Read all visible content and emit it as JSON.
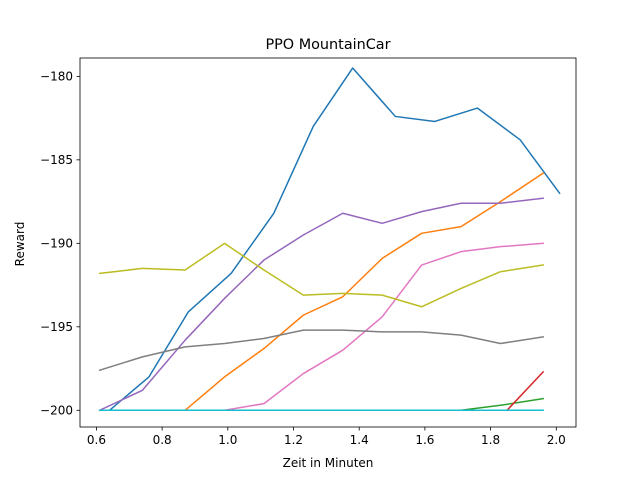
{
  "chart_data": {
    "type": "line",
    "title": "PPO MountainCar",
    "xlabel": "Zeit in Minuten",
    "ylabel": "Reward",
    "xlim": [
      0.55,
      2.06
    ],
    "ylim": [
      -201.0,
      -178.9
    ],
    "x_ticks": [
      0.6,
      0.8,
      1.0,
      1.2,
      1.4,
      1.6,
      1.8,
      2.0
    ],
    "x_tick_labels": [
      "0.6",
      "0.8",
      "1.0",
      "1.2",
      "1.4",
      "1.6",
      "1.8",
      "2.0"
    ],
    "y_ticks": [
      -200,
      -195,
      -190,
      -185,
      -180
    ],
    "y_tick_labels": [
      "−200",
      "−195",
      "−190",
      "−185",
      "−180"
    ],
    "grid": false,
    "series": [
      {
        "color": "#1f77b4",
        "points": [
          [
            0.61,
            -200.0
          ],
          [
            0.64,
            -200.0
          ],
          [
            0.76,
            -198.0
          ],
          [
            0.88,
            -194.1
          ],
          [
            1.01,
            -191.8
          ],
          [
            1.14,
            -188.2
          ],
          [
            1.26,
            -183.0
          ],
          [
            1.38,
            -179.5
          ],
          [
            1.51,
            -182.4
          ],
          [
            1.63,
            -182.7
          ],
          [
            1.76,
            -181.9
          ],
          [
            1.89,
            -183.8
          ],
          [
            2.01,
            -187.0
          ]
        ]
      },
      {
        "color": "#ff7f0e",
        "points": [
          [
            0.61,
            -200.0
          ],
          [
            0.87,
            -200.0
          ],
          [
            0.99,
            -198.0
          ],
          [
            1.11,
            -196.3
          ],
          [
            1.23,
            -194.3
          ],
          [
            1.35,
            -193.2
          ],
          [
            1.47,
            -190.9
          ],
          [
            1.59,
            -189.4
          ],
          [
            1.71,
            -189.0
          ],
          [
            1.83,
            -187.5
          ],
          [
            1.96,
            -185.8
          ]
        ]
      },
      {
        "color": "#2ca02c",
        "points": [
          [
            0.61,
            -200.0
          ],
          [
            1.71,
            -200.0
          ],
          [
            1.83,
            -199.7
          ],
          [
            1.96,
            -199.3
          ]
        ]
      },
      {
        "color": "#d62728",
        "points": [
          [
            1.85,
            -200.0
          ],
          [
            1.96,
            -197.7
          ]
        ]
      },
      {
        "color": "#9467bd",
        "points": [
          [
            0.61,
            -200.0
          ],
          [
            0.74,
            -198.8
          ],
          [
            0.87,
            -195.8
          ],
          [
            0.99,
            -193.3
          ],
          [
            1.11,
            -191.0
          ],
          [
            1.23,
            -189.5
          ],
          [
            1.35,
            -188.2
          ],
          [
            1.47,
            -188.8
          ],
          [
            1.59,
            -188.1
          ],
          [
            1.71,
            -187.6
          ],
          [
            1.83,
            -187.6
          ],
          [
            1.96,
            -187.3
          ]
        ]
      },
      {
        "color": "#e377c2",
        "points": [
          [
            0.61,
            -200.0
          ],
          [
            0.99,
            -200.0
          ],
          [
            1.11,
            -199.6
          ],
          [
            1.23,
            -197.8
          ],
          [
            1.35,
            -196.4
          ],
          [
            1.47,
            -194.4
          ],
          [
            1.59,
            -191.3
          ],
          [
            1.71,
            -190.5
          ],
          [
            1.83,
            -190.2
          ],
          [
            1.96,
            -190.0
          ]
        ]
      },
      {
        "color": "#7f7f7f",
        "points": [
          [
            0.61,
            -197.6
          ],
          [
            0.74,
            -196.8
          ],
          [
            0.87,
            -196.2
          ],
          [
            0.99,
            -196.0
          ],
          [
            1.11,
            -195.7
          ],
          [
            1.23,
            -195.2
          ],
          [
            1.35,
            -195.2
          ],
          [
            1.47,
            -195.3
          ],
          [
            1.59,
            -195.3
          ],
          [
            1.71,
            -195.5
          ],
          [
            1.83,
            -196.0
          ],
          [
            1.96,
            -195.6
          ]
        ]
      },
      {
        "color": "#bcbd22",
        "points": [
          [
            0.61,
            -191.8
          ],
          [
            0.74,
            -191.5
          ],
          [
            0.87,
            -191.6
          ],
          [
            0.99,
            -190.0
          ],
          [
            1.11,
            -191.6
          ],
          [
            1.23,
            -193.1
          ],
          [
            1.35,
            -193.0
          ],
          [
            1.47,
            -193.1
          ],
          [
            1.59,
            -193.8
          ],
          [
            1.71,
            -192.7
          ],
          [
            1.83,
            -191.7
          ],
          [
            1.96,
            -191.3
          ]
        ]
      },
      {
        "color": "#17becf",
        "points": [
          [
            0.61,
            -200.0
          ],
          [
            1.96,
            -200.0
          ]
        ]
      }
    ]
  }
}
